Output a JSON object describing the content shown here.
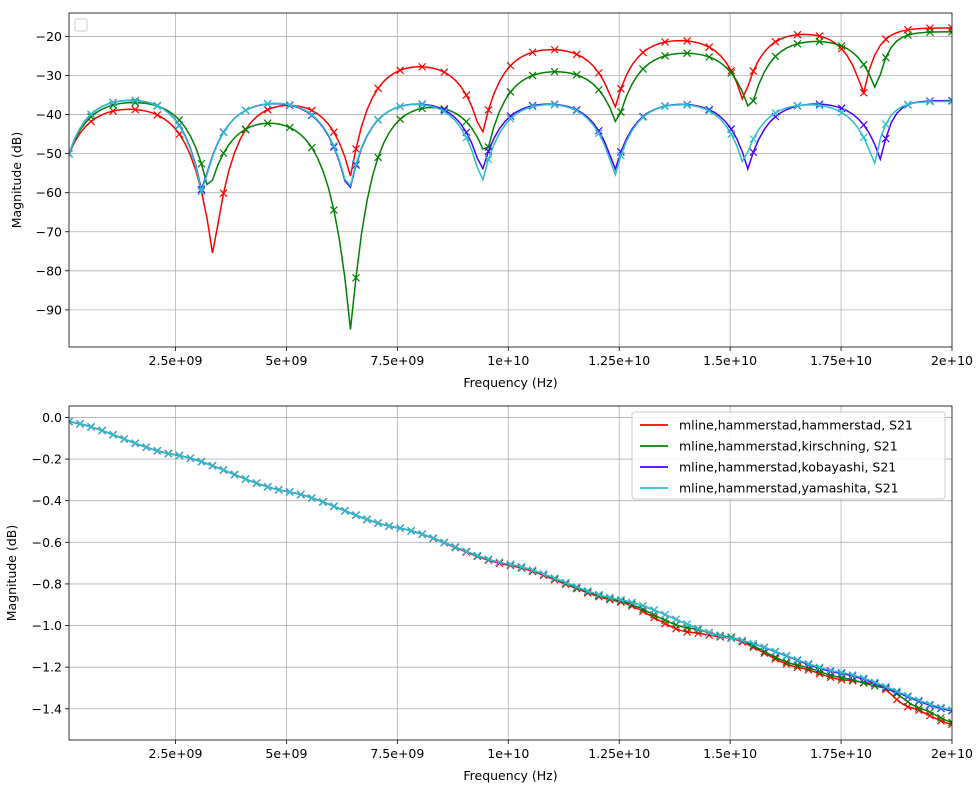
{
  "colors": {
    "hammerstad": "#ff0000",
    "kirschning": "#008000",
    "kobayashi": "#4b00ff",
    "yamashita": "#2bbfc8",
    "grid": "#b0b0b0"
  },
  "chart_data": [
    {
      "type": "line",
      "xlabel": "Frequency (Hz)",
      "ylabel": "Magnitude (dB)",
      "xlim": [
        100000000,
        20000000000
      ],
      "ylim": [
        -99.5,
        -14
      ],
      "grid": true,
      "marker": "x",
      "legend": "top-left (empty)",
      "xticks": [
        2500000000,
        5000000000,
        7500000000,
        10000000000,
        12500000000,
        15000000000,
        17500000000,
        20000000000
      ],
      "xticklabels": [
        "2.5e+09",
        "5e+09",
        "7.5e+09",
        "1e+10",
        "1.25e+10",
        "1.5e+10",
        "1.75e+10",
        "2e+10"
      ],
      "yticks": [
        -20,
        -30,
        -40,
        -50,
        -60,
        -70,
        -80,
        -90
      ],
      "yticklabels": [
        "−20",
        "−30",
        "−40",
        "−50",
        "−60",
        "−70",
        "−80",
        "−90"
      ],
      "series": [
        {
          "key": "hammerstad",
          "peaks": [
            -37.3,
            -35.9,
            -26.3,
            -22.2,
            -20.0,
            -18.4,
            -17.8
          ],
          "nulls": [
            -76.8,
            -56.0,
            -45.9,
            -38.6,
            -37.0,
            -35.0
          ],
          "nullx": [
            3350000000,
            6450000000,
            9400000000,
            12400000000,
            15300000000,
            18000000000
          ]
        },
        {
          "key": "kirschning",
          "peaks": [
            -35.8,
            -40.2,
            -36.4,
            -27.9,
            -23.2,
            -20.3,
            -18.8
          ],
          "nulls": [
            -60.0,
            -95.8,
            -51.0,
            -43.0,
            -39.6,
            -34.3
          ],
          "nullx": [
            3250000000,
            6450000000,
            9500000000,
            12450000000,
            15450000000,
            18300000000
          ]
        },
        {
          "key": "kobayashi",
          "peaks": [
            -35.2,
            -35.7,
            -36.0,
            -36.2,
            -36.3,
            -36.3,
            -36.4
          ],
          "nulls": [
            -60.0,
            -61.0,
            -55.0,
            -54.5,
            -54.0,
            -52.0
          ],
          "nullx": [
            3100000000,
            6400000000,
            9400000000,
            12400000000,
            15400000000,
            18400000000
          ]
        },
        {
          "key": "yamashita",
          "peaks": [
            -35.2,
            -35.6,
            -36.0,
            -36.2,
            -36.4,
            -36.5,
            -36.6
          ],
          "nulls": [
            -60.5,
            -60.5,
            -58.0,
            -56.0,
            -53.0,
            -53.0
          ],
          "nullx": [
            3100000000,
            6400000000,
            9400000000,
            12400000000,
            15300000000,
            18250000000
          ]
        }
      ]
    },
    {
      "type": "line",
      "xlabel": "Frequency (Hz)",
      "ylabel": "Magnitude (dB)",
      "xlim": [
        100000000,
        20000000000
      ],
      "ylim": [
        -1.55,
        0.055
      ],
      "grid": true,
      "marker": "x",
      "legend": "top-right",
      "xticks": [
        2500000000,
        5000000000,
        7500000000,
        10000000000,
        12500000000,
        15000000000,
        17500000000,
        20000000000
      ],
      "xticklabels": [
        "2.5e+09",
        "5e+09",
        "7.5e+09",
        "1e+10",
        "1.25e+10",
        "1.5e+10",
        "1.75e+10",
        "2e+10"
      ],
      "yticks": [
        0.0,
        -0.2,
        -0.4,
        -0.6,
        -0.8,
        -1.0,
        -1.2,
        -1.4
      ],
      "yticklabels": [
        "0.0",
        "−0.2",
        "−0.4",
        "−0.6",
        "−0.8",
        "−1.0",
        "−1.2",
        "−1.4"
      ],
      "series": [
        {
          "key": "hammerstad",
          "name": "mline,hammerstad,hammerstad, S21",
          "points": [
            [
              100000000,
              -0.02
            ],
            [
              2500000000,
              -0.18
            ],
            [
              5000000000,
              -0.355
            ],
            [
              7500000000,
              -0.53
            ],
            [
              10000000000,
              -0.71
            ],
            [
              12500000000,
              -0.885
            ],
            [
              14000000000,
              -1.03
            ],
            [
              15000000000,
              -1.06
            ],
            [
              16500000000,
              -1.2
            ],
            [
              17500000000,
              -1.26
            ],
            [
              18300000000,
              -1.28
            ],
            [
              19000000000,
              -1.39
            ],
            [
              20000000000,
              -1.475
            ]
          ]
        },
        {
          "key": "kirschning",
          "name": "mline,hammerstad,kirschning, S21",
          "points": [
            [
              100000000,
              -0.02
            ],
            [
              2500000000,
              -0.18
            ],
            [
              5000000000,
              -0.355
            ],
            [
              7500000000,
              -0.53
            ],
            [
              10000000000,
              -0.705
            ],
            [
              12500000000,
              -0.88
            ],
            [
              14000000000,
              -1.01
            ],
            [
              15000000000,
              -1.055
            ],
            [
              16500000000,
              -1.19
            ],
            [
              17500000000,
              -1.25
            ],
            [
              18500000000,
              -1.3
            ],
            [
              19300000000,
              -1.4
            ],
            [
              20000000000,
              -1.465
            ]
          ]
        },
        {
          "key": "kobayashi",
          "name": "mline,hammerstad,kobayashi, S21",
          "points": [
            [
              100000000,
              -0.02
            ],
            [
              2500000000,
              -0.18
            ],
            [
              5000000000,
              -0.355
            ],
            [
              7500000000,
              -0.53
            ],
            [
              10000000000,
              -0.705
            ],
            [
              12500000000,
              -0.875
            ],
            [
              15000000000,
              -1.06
            ],
            [
              17500000000,
              -1.23
            ],
            [
              20000000000,
              -1.41
            ]
          ]
        },
        {
          "key": "yamashita",
          "name": "mline,hammerstad,yamashita, S21",
          "points": [
            [
              100000000,
              -0.02
            ],
            [
              2500000000,
              -0.18
            ],
            [
              5000000000,
              -0.355
            ],
            [
              7500000000,
              -0.53
            ],
            [
              10000000000,
              -0.705
            ],
            [
              12500000000,
              -0.875
            ],
            [
              15000000000,
              -1.06
            ],
            [
              17500000000,
              -1.225
            ],
            [
              20000000000,
              -1.405
            ]
          ]
        }
      ]
    }
  ]
}
